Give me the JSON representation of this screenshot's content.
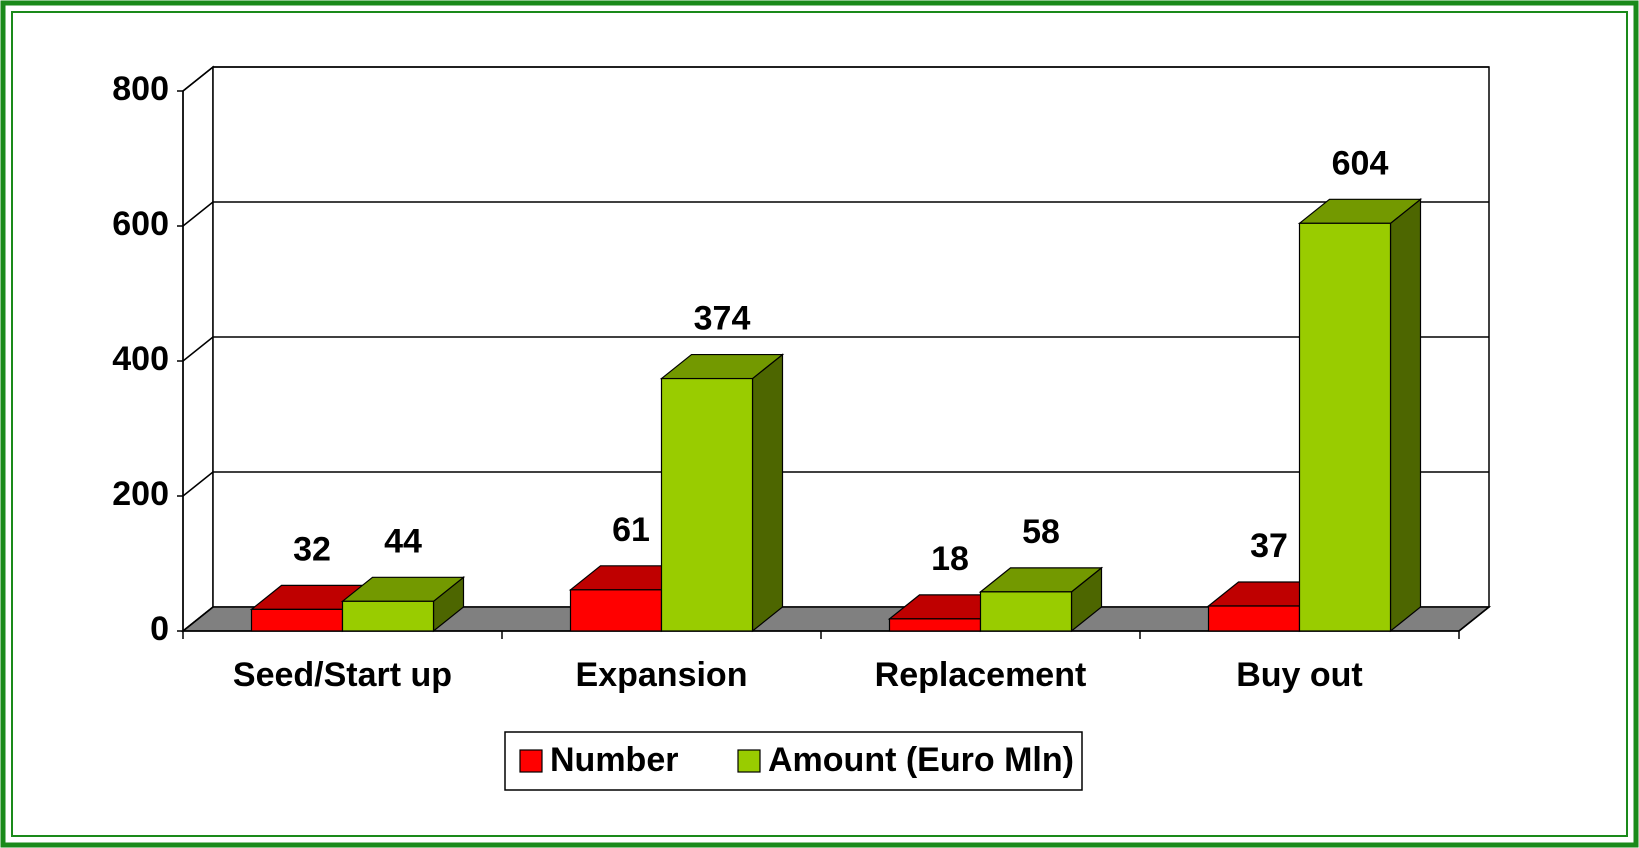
{
  "chart_data": {
    "type": "bar3d",
    "categories": [
      "Seed/Start up",
      "Expansion",
      "Replacement",
      "Buy out"
    ],
    "series": [
      {
        "name": "Number",
        "color": "#ff0000",
        "values": [
          32,
          61,
          18,
          37
        ]
      },
      {
        "name": "Amount (Euro Mln)",
        "color": "#99cc00",
        "values": [
          44,
          374,
          58,
          604
        ]
      }
    ],
    "ylim": [
      0,
      800
    ],
    "yticks": [
      0,
      200,
      400,
      600,
      800
    ],
    "grid": true,
    "legend": "bottom"
  }
}
